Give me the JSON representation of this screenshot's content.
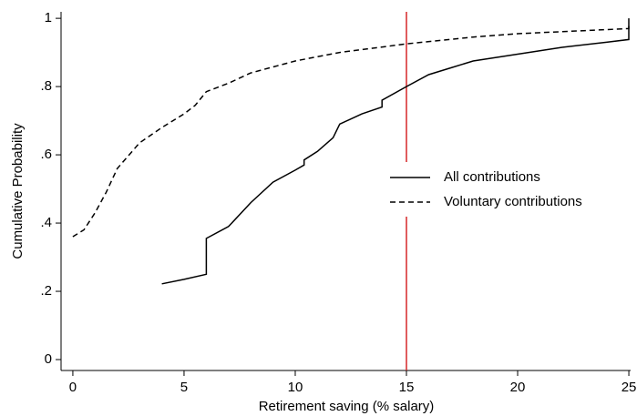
{
  "chart_data": {
    "type": "line",
    "xlabel": "Retirement saving (% salary)",
    "ylabel": "Cumulative Probability",
    "xlim": [
      -0.53,
      25.08
    ],
    "ylim": [
      -0.032,
      1.019
    ],
    "xticks": [
      0,
      5,
      10,
      15,
      20,
      25
    ],
    "yticks": [
      0,
      {
        "value": 0.2,
        "label": ".2"
      },
      {
        "value": 0.4,
        "label": ".4"
      },
      {
        "value": 0.6,
        "label": ".6"
      },
      {
        "value": 0.8,
        "label": ".8"
      },
      1
    ],
    "vline": 15,
    "vline_color": "#d62728",
    "series": [
      {
        "name": "All contributions",
        "color": "#000000",
        "dash": false,
        "x": [
          4,
          5,
          6,
          6,
          7,
          8,
          9,
          10,
          10.4,
          10.4,
          11,
          11.7,
          12,
          13,
          13.9,
          13.9,
          15,
          16,
          17,
          18,
          20,
          22,
          24,
          25,
          25
        ],
        "values": [
          0.222,
          0.235,
          0.25,
          0.355,
          0.39,
          0.46,
          0.52,
          0.555,
          0.57,
          0.585,
          0.61,
          0.65,
          0.69,
          0.72,
          0.74,
          0.76,
          0.8,
          0.835,
          0.855,
          0.875,
          0.895,
          0.915,
          0.93,
          0.938,
          1.0
        ]
      },
      {
        "name": "Voluntary contributions",
        "color": "#000000",
        "dash": true,
        "x": [
          0,
          0.5,
          1,
          1.5,
          2,
          3,
          4,
          5,
          5.5,
          6,
          7,
          8,
          10,
          12,
          15,
          18,
          20,
          25,
          25
        ],
        "values": [
          0.36,
          0.38,
          0.43,
          0.49,
          0.56,
          0.635,
          0.68,
          0.72,
          0.745,
          0.785,
          0.81,
          0.84,
          0.875,
          0.9,
          0.925,
          0.945,
          0.955,
          0.97,
          0.978
        ]
      }
    ]
  }
}
